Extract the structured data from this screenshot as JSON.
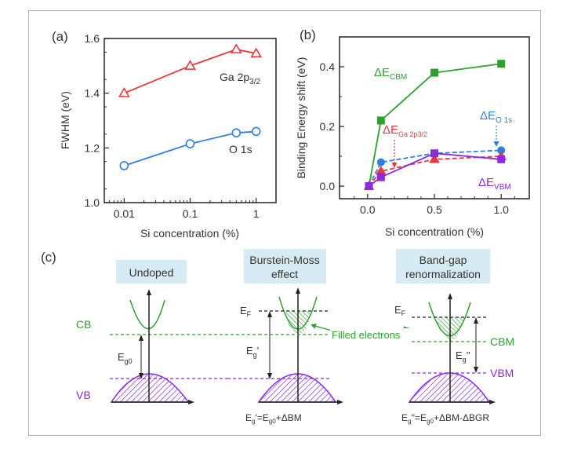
{
  "chart_data": [
    {
      "panel": "(a)",
      "type": "line",
      "xscale": "log",
      "xlabel": "Si concentration (%)",
      "ylabel": "FWHM (eV)",
      "xlim": [
        0.005,
        2.0
      ],
      "ylim": [
        1.0,
        1.6
      ],
      "xticks": [
        {
          "v": 0.01,
          "label": "0.01"
        },
        {
          "v": 0.1,
          "label": "0.1"
        },
        {
          "v": 1,
          "label": "1"
        }
      ],
      "yticks": [
        {
          "v": 1.0,
          "label": "1.0"
        },
        {
          "v": 1.2,
          "label": "1.2"
        },
        {
          "v": 1.4,
          "label": "1.4"
        },
        {
          "v": 1.6,
          "label": "1.6"
        }
      ],
      "series": [
        {
          "name": "Ga 2p3/2",
          "label_main": "Ga 2p",
          "label_sub": "3/2",
          "color": "#e8383d",
          "marker": "open-triangle",
          "x": [
            0.01,
            0.1,
            0.5,
            1
          ],
          "y": [
            1.4,
            1.5,
            1.56,
            1.545
          ]
        },
        {
          "name": "O 1s",
          "label_main": "O 1s",
          "label_sub": "",
          "color": "#2f7fe0",
          "marker": "open-circle",
          "x": [
            0.01,
            0.1,
            0.5,
            1
          ],
          "y": [
            1.135,
            1.215,
            1.255,
            1.26
          ]
        }
      ]
    },
    {
      "panel": "(b)",
      "type": "line",
      "xlabel": "Si concentration (%)",
      "ylabel": "Binding Energy shift (eV)",
      "xlim": [
        -0.21,
        1.21
      ],
      "ylim": [
        -0.042,
        0.5
      ],
      "xticks": [
        {
          "v": 0.0,
          "label": "0.0"
        },
        {
          "v": 0.5,
          "label": "0.5"
        },
        {
          "v": 1.0,
          "label": "1.0"
        }
      ],
      "yticks": [
        {
          "v": 0.0,
          "label": "0.0"
        },
        {
          "v": 0.2,
          "label": "0.2"
        },
        {
          "v": 0.4,
          "label": "0.4"
        }
      ],
      "series": [
        {
          "name": "ΔE CBM",
          "label_main": "ΔE",
          "label_sub": "CBM",
          "color": "#2ea02e",
          "marker": "filled-square",
          "dash": false,
          "x": [
            0.01,
            0.1,
            0.5,
            1.0
          ],
          "y": [
            0.0,
            0.22,
            0.38,
            0.41
          ]
        },
        {
          "name": "ΔE O 1s",
          "label_main": "ΔE",
          "label_sub": "O 1s",
          "color": "#2f7fe0",
          "marker": "filled-circle",
          "dash": true,
          "x": [
            0.01,
            0.1,
            0.5,
            1.0
          ],
          "y": [
            0.0,
            0.08,
            0.11,
            0.12
          ]
        },
        {
          "name": "ΔE Ga 2p3/2",
          "label_main": "ΔE",
          "label_sub": "Ga 2p3/2",
          "color": "#e8383d",
          "marker": "filled-triangle",
          "dash": true,
          "x": [
            0.01,
            0.1,
            0.5,
            1.0
          ],
          "y": [
            0.0,
            0.05,
            0.09,
            0.1
          ]
        },
        {
          "name": "ΔE VBM",
          "label_main": "ΔE",
          "label_sub": "VBM",
          "color": "#8a2be2",
          "marker": "filled-square",
          "dash": false,
          "x": [
            0.01,
            0.1,
            0.5,
            1.0
          ],
          "y": [
            0.0,
            0.03,
            0.11,
            0.09
          ]
        }
      ]
    }
  ],
  "panel_c": {
    "label": "(c)",
    "diagrams": [
      {
        "title_lines": [
          "Undoped"
        ],
        "cb_label": "CB",
        "vb_label": "VB",
        "gap_label": "Eg0",
        "formula": ""
      },
      {
        "title_lines": [
          "Burstein-Moss",
          "effect"
        ],
        "ef_label": "EF",
        "gap_label": "Eg'",
        "filled_label": "Filled electrons",
        "formula": "Eg'=Eg0+ΔBM"
      },
      {
        "title_lines": [
          "Band-gap",
          "renormalization"
        ],
        "ef_label": "EF",
        "cbm_label": "CBM",
        "vbm_label": "VBM",
        "gap_label": "Eg''",
        "formula": "Eg''=Eg0+ΔBM-ΔBGR"
      }
    ]
  },
  "colors": {
    "green": "#2ea02e",
    "purple": "#8a2be2",
    "box_fill": "#d7ebf5",
    "axis": "#222222"
  }
}
